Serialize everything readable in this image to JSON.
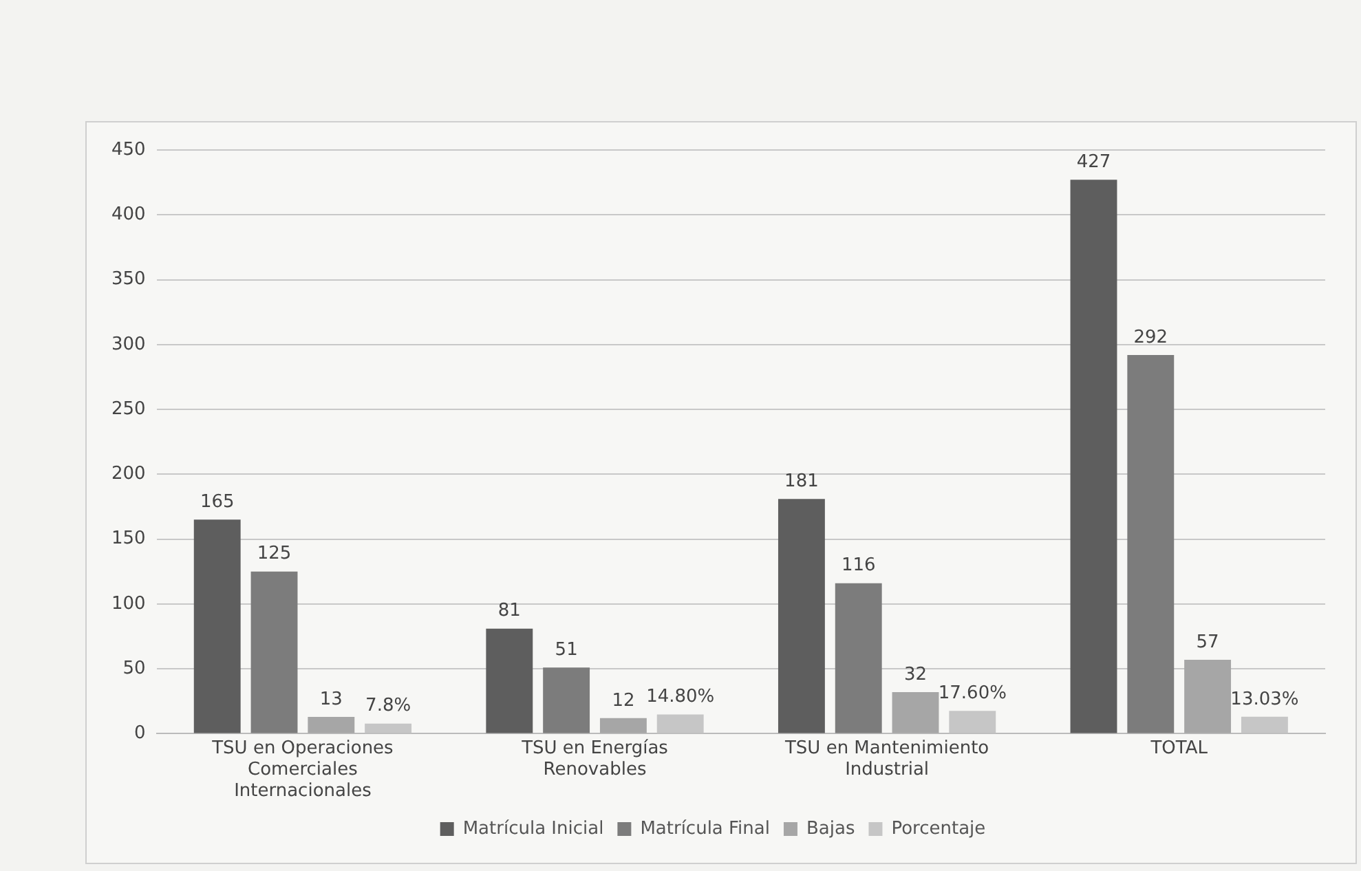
{
  "chart_data": {
    "type": "bar",
    "categories": [
      "TSU en Operaciones Comerciales Internacionales",
      "TSU en Energías Renovables",
      "TSU en Mantenimiento Industrial",
      "TOTAL"
    ],
    "series": [
      {
        "name": "Matrícula Inicial",
        "color": "#5e5e5e",
        "values": [
          165,
          81,
          181,
          427
        ],
        "value_labels": [
          "165",
          "81",
          "181",
          "427"
        ]
      },
      {
        "name": "Matrícula Final",
        "color": "#7c7c7c",
        "values": [
          125,
          51,
          116,
          292
        ],
        "value_labels": [
          "125",
          "51",
          "116",
          "292"
        ]
      },
      {
        "name": "Bajas",
        "color": "#a6a6a6",
        "values": [
          13,
          12,
          32,
          57
        ],
        "value_labels": [
          "13",
          "12",
          "32",
          "57"
        ]
      },
      {
        "name": "Porcentaje",
        "color": "#c6c6c6",
        "values": [
          7.8,
          14.8,
          17.6,
          13.03
        ],
        "value_labels": [
          "7.8%",
          "14.80%",
          "17.60%",
          "13.03%"
        ]
      }
    ],
    "ylim": [
      0,
      450
    ],
    "yticks": [
      0,
      50,
      100,
      150,
      200,
      250,
      300,
      350,
      400,
      450
    ],
    "grid": "y",
    "legend": "bottom"
  }
}
